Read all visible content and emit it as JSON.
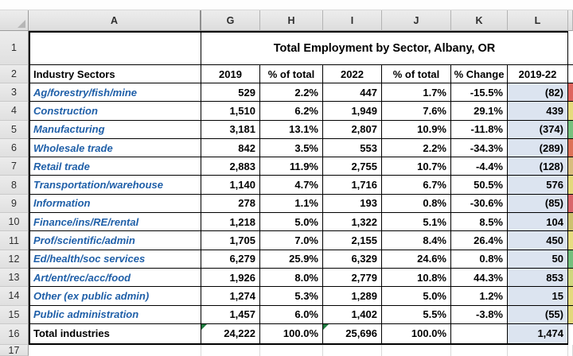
{
  "app": {
    "kind": "spreadsheet-grid"
  },
  "column_letters": [
    "A",
    "G",
    "H",
    "I",
    "J",
    "K",
    "L"
  ],
  "title": "Total Employment by Sector, Albany, OR",
  "headers": {
    "sector": "Industry Sectors",
    "v2019": "2019",
    "p2019": "% of total",
    "v2022": "2022",
    "p2022": "% of total",
    "change": "% Change",
    "diff": "2019-22"
  },
  "row1_num": "1",
  "row2_num": "2",
  "row17_num": "17",
  "rows": [
    {
      "num": "3",
      "sector": "Ag/forestry/fish/mine",
      "v2019": "529",
      "p2019": "2.2%",
      "v2022": "447",
      "p2022": "1.7%",
      "change": "-15.5%",
      "diff": "(82)",
      "sliver": "#df655f"
    },
    {
      "num": "4",
      "sector": "Construction",
      "v2019": "1,510",
      "p2019": "6.2%",
      "v2022": "1,949",
      "p2022": "7.6%",
      "change": "29.1%",
      "diff": "439",
      "sliver": "#e5db7d"
    },
    {
      "num": "5",
      "sector": "Manufacturing",
      "v2019": "3,181",
      "p2019": "13.1%",
      "v2022": "2,807",
      "p2022": "10.9%",
      "change": "-11.8%",
      "diff": "(374)",
      "sliver": "#77c17e"
    },
    {
      "num": "6",
      "sector": "Wholesale trade",
      "v2019": "842",
      "p2019": "3.5%",
      "v2022": "553",
      "p2022": "2.2%",
      "change": "-34.3%",
      "diff": "(289)",
      "sliver": "#dd7257"
    },
    {
      "num": "7",
      "sector": "Retail trade",
      "v2019": "2,883",
      "p2019": "11.9%",
      "v2022": "2,755",
      "p2022": "10.7%",
      "change": "-4.4%",
      "diff": "(128)",
      "sliver": "#d8bd7e"
    },
    {
      "num": "8",
      "sector": "Transportation/warehouse",
      "v2019": "1,140",
      "p2019": "4.7%",
      "v2022": "1,716",
      "p2022": "6.7%",
      "change": "50.5%",
      "diff": "576",
      "sliver": "#e3d97c"
    },
    {
      "num": "9",
      "sector": "Information",
      "v2019": "278",
      "p2019": "1.1%",
      "v2022": "193",
      "p2022": "0.8%",
      "change": "-30.6%",
      "diff": "(85)",
      "sliver": "#d9676b"
    },
    {
      "num": "10",
      "sector": "Finance/ins/RE/rental",
      "v2019": "1,218",
      "p2019": "5.0%",
      "v2022": "1,322",
      "p2022": "5.1%",
      "change": "8.5%",
      "diff": "104",
      "sliver": "#cdc270"
    },
    {
      "num": "11",
      "sector": "Prof/scientific/admin",
      "v2019": "1,705",
      "p2019": "7.0%",
      "v2022": "2,155",
      "p2022": "8.4%",
      "change": "26.4%",
      "diff": "450",
      "sliver": "#e6dc80"
    },
    {
      "num": "12",
      "sector": "Ed/health/soc services",
      "v2019": "6,279",
      "p2019": "25.9%",
      "v2022": "6,329",
      "p2022": "24.6%",
      "change": "0.8%",
      "diff": "50",
      "sliver": "#74bf7c"
    },
    {
      "num": "13",
      "sector": "Art/ent/rec/acc/food",
      "v2019": "1,926",
      "p2019": "8.0%",
      "v2022": "2,779",
      "p2022": "10.8%",
      "change": "44.3%",
      "diff": "853",
      "sliver": "#cfd77e"
    },
    {
      "num": "14",
      "sector": "Other (ex public admin)",
      "v2019": "1,274",
      "p2019": "5.3%",
      "v2022": "1,289",
      "p2022": "5.0%",
      "change": "1.2%",
      "diff": "15",
      "sliver": "#e4da7e"
    },
    {
      "num": "15",
      "sector": "Public administration",
      "v2019": "1,457",
      "p2019": "6.0%",
      "v2022": "1,402",
      "p2022": "5.5%",
      "change": "-3.8%",
      "diff": "(55)",
      "sliver": "#e2d87c"
    }
  ],
  "total": {
    "num": "16",
    "sector": "Total industries",
    "v2019": "24,222",
    "p2019": "100.0%",
    "v2022": "25,696",
    "p2022": "100.0%",
    "change": "",
    "diff": "1,474",
    "sliver": "#ffffff",
    "total": true,
    "flags": [
      "v2019",
      "v2022"
    ]
  },
  "colors": {
    "sector_text": "#1f5fa8",
    "diff_fill": "#dce4f0",
    "error_flag": "#1e7a3e",
    "header_bg": "#e6e6e6"
  }
}
